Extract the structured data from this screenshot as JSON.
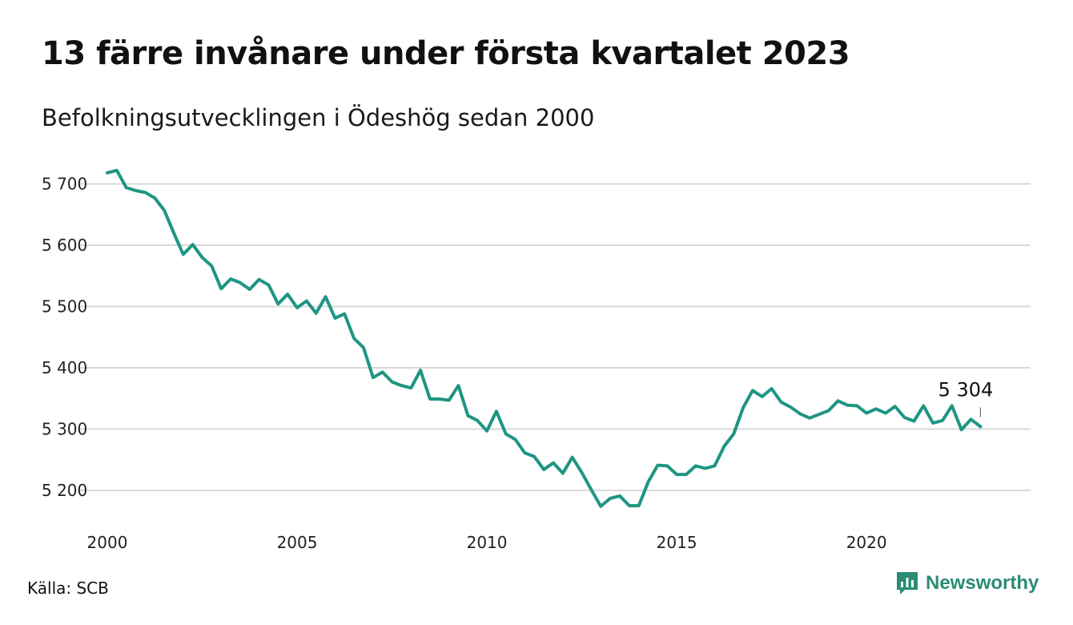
{
  "header": {
    "title": "13 färre invånare under första kvartalet 2023",
    "subtitle": "Befolkningsutvecklingen i Ödeshög sedan 2000"
  },
  "footer": {
    "source": "Källa: SCB",
    "brand": "Newsworthy",
    "brand_icon": "chart-speech-bubble-icon"
  },
  "colors": {
    "line": "#1f9583",
    "grid": "#d9d9d9",
    "brand": "#2a8c73"
  },
  "chart_data": {
    "type": "line",
    "title": "13 färre invånare under första kvartalet 2023",
    "subtitle": "Befolkningsutvecklingen i Ödeshög sedan 2000",
    "xlabel": "",
    "ylabel": "",
    "xlim": [
      2000.0,
      2023.25
    ],
    "ylim": [
      5170,
      5730
    ],
    "grid": true,
    "legend": "none",
    "x_ticks": [
      2000,
      2005,
      2010,
      2015,
      2020
    ],
    "x_tick_labels": [
      "2000",
      "2005",
      "2010",
      "2015",
      "2020"
    ],
    "y_ticks": [
      5200,
      5300,
      5400,
      5500,
      5600,
      5700
    ],
    "y_tick_labels": [
      "5 200",
      "5 300",
      "5 400",
      "5 500",
      "5 600",
      "5 700"
    ],
    "end_label": "5 304",
    "series": [
      {
        "x": [
          2000.0,
          2000.25,
          2000.5,
          2000.75,
          2001.0,
          2001.25,
          2001.5,
          2001.75,
          2002.0,
          2002.25,
          2002.5,
          2002.75,
          2003.0,
          2003.25,
          2003.5,
          2003.75,
          2004.0,
          2004.25,
          2004.5,
          2004.75,
          2005.0,
          2005.25,
          2005.5,
          2005.75,
          2006.0,
          2006.25,
          2006.5,
          2006.75,
          2007.0,
          2007.25,
          2007.5,
          2007.75,
          2008.0,
          2008.25,
          2008.5,
          2008.75,
          2009.0,
          2009.25,
          2009.5,
          2009.75,
          2010.0,
          2010.25,
          2010.5,
          2010.75,
          2011.0,
          2011.25,
          2011.5,
          2011.75,
          2012.0,
          2012.25,
          2012.5,
          2012.75,
          2013.0,
          2013.25,
          2013.5,
          2013.75,
          2014.0,
          2014.25,
          2014.5,
          2014.75,
          2015.0,
          2015.25,
          2015.5,
          2015.75,
          2016.0,
          2016.25,
          2016.5,
          2016.75,
          2017.0,
          2017.25,
          2017.5,
          2017.75,
          2018.0,
          2018.25,
          2018.5,
          2018.75,
          2019.0,
          2019.25,
          2019.5,
          2019.75,
          2020.0,
          2020.25,
          2020.5,
          2020.75,
          2021.0,
          2021.25,
          2021.5,
          2021.75,
          2022.0,
          2022.25,
          2022.5,
          2022.75,
          2023.0
        ],
        "y": [
          5718,
          5722,
          5694,
          5689,
          5686,
          5677,
          5657,
          5620,
          5585,
          5601,
          5580,
          5566,
          5529,
          5545,
          5539,
          5528,
          5544,
          5535,
          5504,
          5520,
          5498,
          5509,
          5489,
          5516,
          5481,
          5488,
          5448,
          5433,
          5384,
          5393,
          5377,
          5371,
          5367,
          5396,
          5349,
          5349,
          5347,
          5371,
          5322,
          5314,
          5297,
          5329,
          5292,
          5283,
          5261,
          5255,
          5234,
          5245,
          5228,
          5254,
          5229,
          5201,
          5174,
          5187,
          5191,
          5175,
          5175,
          5214,
          5241,
          5240,
          5226,
          5226,
          5240,
          5236,
          5240,
          5272,
          5292,
          5335,
          5363,
          5353,
          5366,
          5344,
          5336,
          5325,
          5318,
          5324,
          5330,
          5346,
          5339,
          5338,
          5326,
          5333,
          5326,
          5337,
          5319,
          5313,
          5338,
          5310,
          5314,
          5338,
          5299,
          5316,
          5304
        ]
      }
    ]
  }
}
